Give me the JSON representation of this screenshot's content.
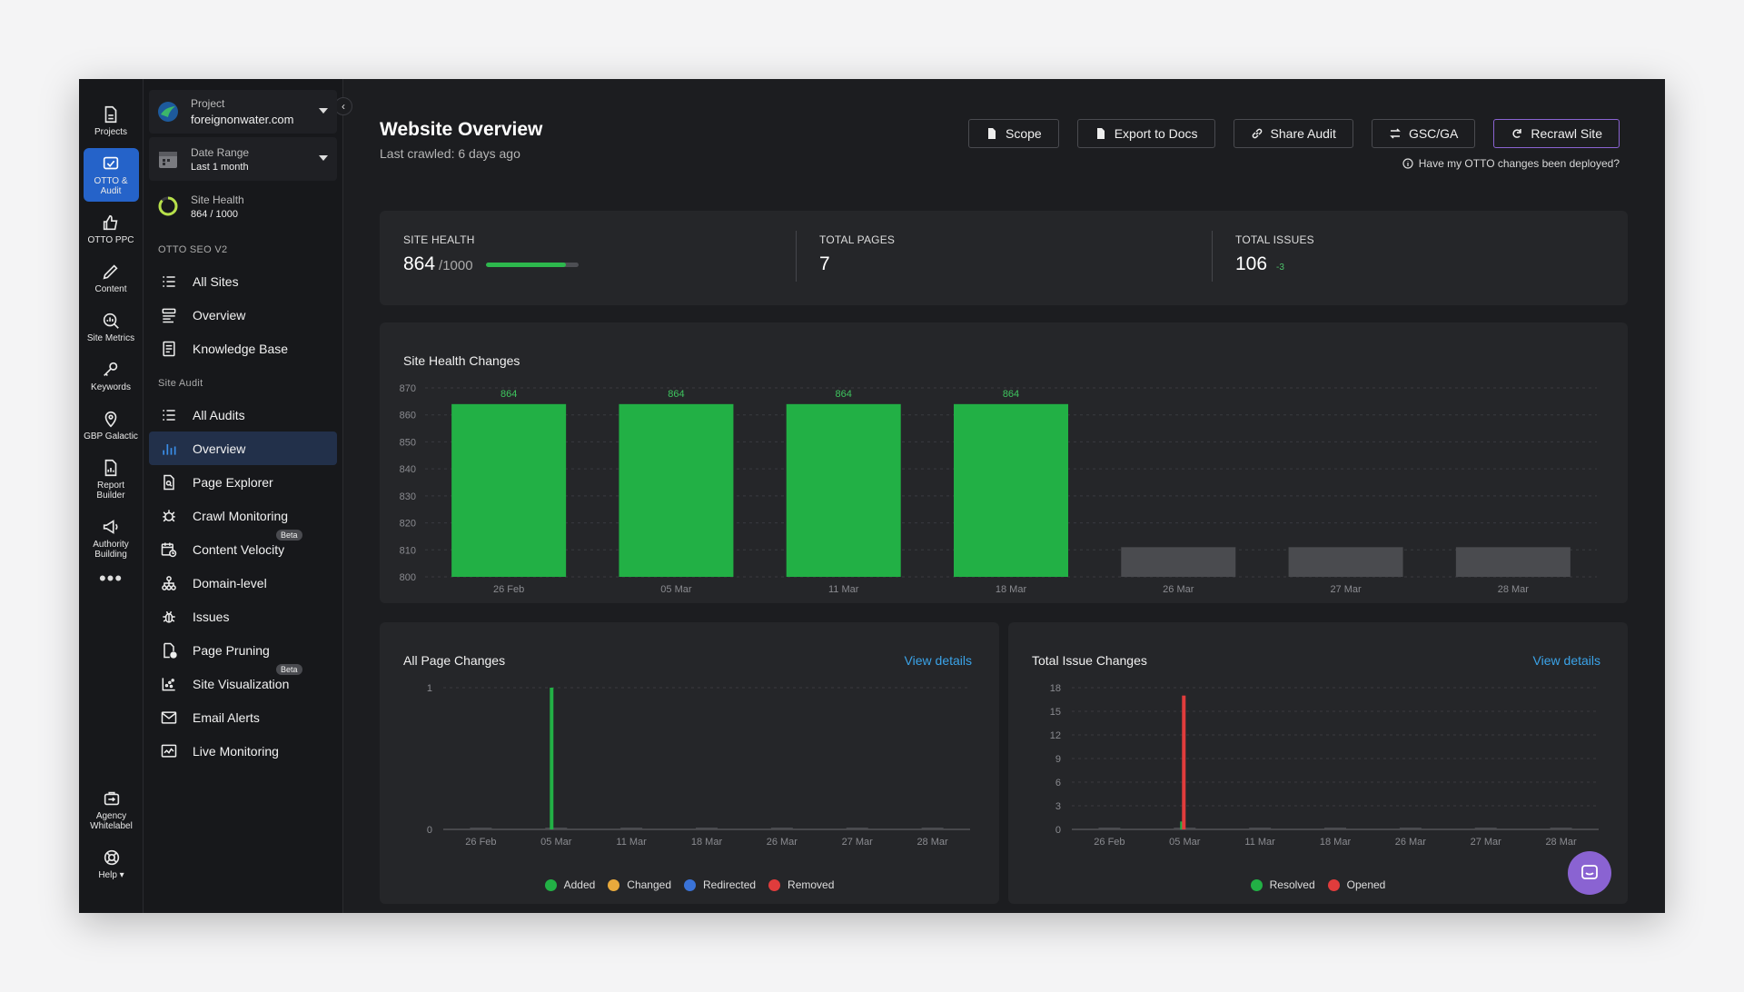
{
  "rail": {
    "items": [
      {
        "label": "Projects",
        "icon": "projects-icon"
      },
      {
        "label": "OTTO & Audit",
        "icon": "otto-audit-icon",
        "active": true
      },
      {
        "label": "OTTO PPC",
        "icon": "thumb-up-icon"
      },
      {
        "label": "Content",
        "icon": "pencil-icon"
      },
      {
        "label": "Site Metrics",
        "icon": "site-metrics-icon"
      },
      {
        "label": "Keywords",
        "icon": "key-icon"
      },
      {
        "label": "GBP Galactic",
        "icon": "map-pin-icon"
      },
      {
        "label": "Report Builder",
        "icon": "report-icon"
      },
      {
        "label": "Authority Building",
        "icon": "megaphone-icon"
      }
    ],
    "more": "•••",
    "bottom": [
      {
        "label": "Agency Whitelabel",
        "icon": "agency-icon"
      },
      {
        "label": "Help ▾",
        "icon": "help-icon"
      }
    ]
  },
  "sidebar": {
    "project_label": "Project",
    "project_value": "foreignonwater.com",
    "date_label": "Date Range",
    "date_value": "Last 1 month",
    "health_label": "Site Health",
    "health_value": "864 / 1000",
    "section_otto": "OTTO SEO V2",
    "otto_items": [
      {
        "label": "All Sites",
        "icon": "list-icon"
      },
      {
        "label": "Overview",
        "icon": "overview-icon"
      },
      {
        "label": "Knowledge Base",
        "icon": "book-icon"
      }
    ],
    "section_audit": "Site Audit",
    "audit_items": [
      {
        "label": "All Audits",
        "icon": "list-icon"
      },
      {
        "label": "Overview",
        "icon": "bar-chart-icon",
        "active": true
      },
      {
        "label": "Page Explorer",
        "icon": "page-search-icon"
      },
      {
        "label": "Crawl Monitoring",
        "icon": "bug-icon"
      },
      {
        "label": "Content Velocity",
        "icon": "calendar-clock-icon",
        "badge": "Beta"
      },
      {
        "label": "Domain-level",
        "icon": "hierarchy-icon"
      },
      {
        "label": "Issues",
        "icon": "issue-bug-icon"
      },
      {
        "label": "Page Pruning",
        "icon": "page-prune-icon"
      },
      {
        "label": "Site Visualization",
        "icon": "scatter-icon",
        "badge": "Beta"
      },
      {
        "label": "Email Alerts",
        "icon": "mail-icon"
      },
      {
        "label": "Live Monitoring",
        "icon": "monitor-icon"
      }
    ]
  },
  "header": {
    "title": "Website Overview",
    "subtitle": "Last crawled: 6 days ago",
    "buttons": [
      "Scope",
      "Export to Docs",
      "Share Audit",
      "GSC/GA",
      "Recrawl Site"
    ],
    "deploy_question": "Have my OTTO changes been deployed?"
  },
  "stats": {
    "site_health_label": "SITE HEALTH",
    "site_health_value": "864",
    "site_health_max": "/1000",
    "site_health_fraction": 0.864,
    "total_pages_label": "TOTAL PAGES",
    "total_pages_value": "7",
    "total_issues_label": "TOTAL ISSUES",
    "total_issues_value": "106",
    "total_issues_delta": "-3"
  },
  "colors": {
    "green": "#22b045",
    "gray_bar": "#4a4b4f",
    "red": "#e03c3c",
    "orange": "#e8a93c",
    "blue": "#3a73d8",
    "link": "#3ba3e8",
    "accent": "#8a63d2"
  },
  "chart_data": [
    {
      "type": "bar",
      "title": "Site Health Changes",
      "categories": [
        "26 Feb",
        "05 Mar",
        "11 Mar",
        "18 Mar",
        "26 Mar",
        "27 Mar",
        "28 Mar"
      ],
      "values": [
        864,
        864,
        864,
        864,
        811,
        811,
        811
      ],
      "data_labels": [
        "864",
        "864",
        "864",
        "864",
        "",
        "",
        ""
      ],
      "highlight": [
        true,
        true,
        true,
        true,
        false,
        false,
        false
      ],
      "ylim": [
        800,
        870
      ],
      "yticks": [
        800,
        810,
        820,
        830,
        840,
        850,
        860,
        870
      ],
      "grid": true
    },
    {
      "type": "bar",
      "title": "All Page Changes",
      "link": "View details",
      "categories": [
        "26 Feb",
        "05 Mar",
        "11 Mar",
        "18 Mar",
        "26 Mar",
        "27 Mar",
        "28 Mar"
      ],
      "series": [
        {
          "name": "Added",
          "color": "#22b045",
          "values": [
            0,
            1,
            0,
            0,
            0,
            0,
            0
          ]
        },
        {
          "name": "Changed",
          "color": "#e8a93c",
          "values": [
            0,
            0,
            0,
            0,
            0,
            0,
            0
          ]
        },
        {
          "name": "Redirected",
          "color": "#3a73d8",
          "values": [
            0,
            0,
            0,
            0,
            0,
            0,
            0
          ]
        },
        {
          "name": "Removed",
          "color": "#e03c3c",
          "values": [
            0,
            0,
            0,
            0,
            0,
            0,
            0
          ]
        }
      ],
      "ylim": [
        0,
        1
      ],
      "yticks": [
        0,
        1
      ],
      "legend": "bottom"
    },
    {
      "type": "bar",
      "title": "Total Issue Changes",
      "link": "View details",
      "categories": [
        "26 Feb",
        "05 Mar",
        "11 Mar",
        "18 Mar",
        "26 Mar",
        "27 Mar",
        "28 Mar"
      ],
      "series": [
        {
          "name": "Resolved",
          "color": "#22b045",
          "values": [
            0,
            1,
            0,
            0,
            0,
            0,
            0
          ]
        },
        {
          "name": "Opened",
          "color": "#e03c3c",
          "values": [
            0,
            17,
            0,
            0,
            0,
            0,
            0
          ]
        }
      ],
      "ylim": [
        0,
        18
      ],
      "yticks": [
        0,
        3,
        6,
        9,
        12,
        15,
        18
      ],
      "legend": "bottom"
    }
  ]
}
